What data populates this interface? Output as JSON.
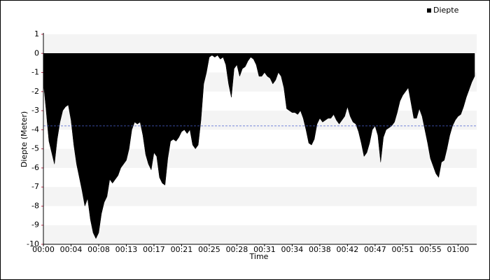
{
  "chart_data": {
    "type": "area",
    "x_label": "Time",
    "y_label": "Diepte (Meter)",
    "series": [
      {
        "name": "Diepte",
        "color": "#000000",
        "values": [
          -1.5,
          -3,
          -4.6,
          -5.2,
          -5.8,
          -4.5,
          -3.6,
          -3,
          -2.8,
          -2.7,
          -3.5,
          -4.8,
          -5.8,
          -6.5,
          -7.2,
          -8,
          -7.6,
          -8.7,
          -9.4,
          -9.7,
          -9.4,
          -8.4,
          -7.8,
          -7.5,
          -6.6,
          -6.8,
          -6.6,
          -6.4,
          -6,
          -5.8,
          -5.6,
          -5,
          -4,
          -3.6,
          -3.7,
          -3.6,
          -4.3,
          -5.3,
          -5.8,
          -6.1,
          -5.2,
          -5.4,
          -6.5,
          -6.8,
          -6.9,
          -5.5,
          -4.6,
          -4.5,
          -4.6,
          -4.4,
          -4.1,
          -4,
          -4.2,
          -4,
          -4.8,
          -5,
          -4.8,
          -3.5,
          -1.6,
          -1,
          -0.2,
          -0.1,
          -0.2,
          -0.1,
          -0.3,
          -0.2,
          -0.6,
          -1.6,
          -2.3,
          -0.8,
          -0.6,
          -1.2,
          -0.8,
          -0.7,
          -0.4,
          -0.2,
          -0.3,
          -0.6,
          -1.2,
          -1.2,
          -1,
          -1.2,
          -1.3,
          -1.6,
          -1.4,
          -1,
          -1.2,
          -1.8,
          -2.9,
          -3,
          -3.1,
          -3.1,
          -3.2,
          -3,
          -3.4,
          -4,
          -4.7,
          -4.8,
          -4.5,
          -3.7,
          -3.4,
          -3.6,
          -3.5,
          -3.4,
          -3.4,
          -3.2,
          -3.5,
          -3.7,
          -3.5,
          -3.3,
          -2.8,
          -3.3,
          -3.6,
          -3.7,
          -4.1,
          -4.7,
          -5.4,
          -5.2,
          -4.7,
          -4,
          -3.8,
          -4.3,
          -5.7,
          -4.4,
          -4,
          -3.9,
          -3.8,
          -3.6,
          -3.1,
          -2.5,
          -2.2,
          -2,
          -1.8,
          -2.6,
          -3.4,
          -3.4,
          -2.9,
          -3.3,
          -4,
          -4.7,
          -5.5,
          -5.9,
          -6.3,
          -6.5,
          -5.7,
          -5.6,
          -5,
          -4.3,
          -3.8,
          -3.5,
          -3.3,
          -3.2,
          -2.8,
          -2.3,
          -1.9,
          -1.5,
          -1.2
        ]
      }
    ],
    "x": [
      0,
      0.4,
      0.8,
      1.2,
      1.6,
      2,
      2.4,
      2.8,
      3.2,
      3.6,
      4,
      4.4,
      4.8,
      5.2,
      5.6,
      6,
      6.4,
      6.8,
      7.2,
      7.6,
      8,
      8.4,
      8.8,
      9.2,
      9.6,
      10,
      10.4,
      10.8,
      11.2,
      11.6,
      12,
      12.4,
      12.8,
      13.2,
      13.6,
      14,
      14.4,
      14.8,
      15.2,
      15.6,
      16,
      16.4,
      16.8,
      17.2,
      17.6,
      18,
      18.4,
      18.8,
      19.2,
      19.6,
      20,
      20.4,
      20.8,
      21.2,
      21.6,
      22,
      22.4,
      22.8,
      23.2,
      23.6,
      24,
      24.4,
      24.8,
      25.2,
      25.6,
      26,
      26.4,
      26.8,
      27.2,
      27.6,
      28,
      28.4,
      28.8,
      29.2,
      29.6,
      30,
      30.4,
      30.8,
      31.2,
      31.6,
      32,
      32.4,
      32.8,
      33.2,
      33.6,
      34,
      34.4,
      34.8,
      35.2,
      35.6,
      36,
      36.4,
      36.8,
      37.2,
      37.6,
      38,
      38.4,
      38.8,
      39.2,
      39.6,
      40,
      40.4,
      40.8,
      41.2,
      41.6,
      42,
      42.4,
      42.8,
      43.2,
      43.6,
      44,
      44.4,
      44.8,
      45.2,
      45.6,
      46,
      46.4,
      46.8,
      47.2,
      47.6,
      48,
      48.4,
      48.8,
      49.2,
      49.6,
      50,
      50.4,
      50.8,
      51.2,
      51.6,
      52,
      52.4,
      52.8,
      53.2,
      53.6,
      54,
      54.4,
      54.8,
      55.2,
      55.6,
      56,
      56.4,
      56.8,
      57.2,
      57.6,
      58,
      58.4,
      58.8,
      59.2,
      59.6,
      60,
      60.4,
      60.8,
      61.2,
      61.6,
      62,
      62.4
    ],
    "xlim": [
      0,
      62.7
    ],
    "xticks": [
      {
        "value": 0,
        "label": "00:00"
      },
      {
        "value": 4,
        "label": "00:04"
      },
      {
        "value": 8,
        "label": "00:08"
      },
      {
        "value": 12,
        "label": "00:13"
      },
      {
        "value": 16,
        "label": "00:17"
      },
      {
        "value": 20,
        "label": "00:21"
      },
      {
        "value": 24,
        "label": "00:25"
      },
      {
        "value": 28,
        "label": "00:28"
      },
      {
        "value": 32,
        "label": "00:31"
      },
      {
        "value": 36,
        "label": "00:34"
      },
      {
        "value": 40,
        "label": "00:38"
      },
      {
        "value": 44,
        "label": "00:42"
      },
      {
        "value": 48,
        "label": "00:47"
      },
      {
        "value": 52,
        "label": "00:51"
      },
      {
        "value": 56,
        "label": "00:55"
      },
      {
        "value": 60,
        "label": "01:00"
      }
    ],
    "ylim": [
      -10,
      1
    ],
    "yticks": [
      -10,
      -9,
      -8,
      -7,
      -6,
      -5,
      -4,
      -3,
      -2,
      -1,
      0,
      1
    ],
    "reference_line": -3.8,
    "reference_color": "#4a5fd0",
    "grid": true,
    "legend": "top-right"
  }
}
